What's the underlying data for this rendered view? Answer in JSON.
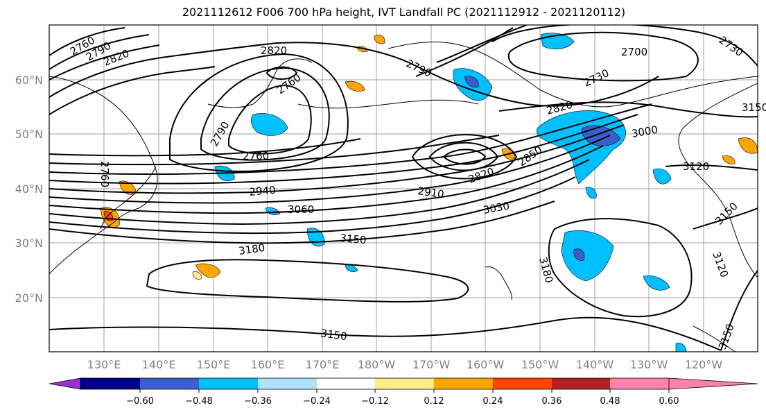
{
  "title": "2021112612 F006 700 hPa height, IVT Landfall PC (2021112912 - 2021120112)",
  "map": {
    "lon_labels": [
      "130°E",
      "140°E",
      "150°E",
      "160°E",
      "170°E",
      "180°W",
      "170°W",
      "160°W",
      "150°W",
      "140°W",
      "130°W",
      "120°W"
    ],
    "lat_labels": [
      "60°N",
      "50°N",
      "40°N",
      "30°N",
      "20°N"
    ],
    "contour_labels": [
      "2760",
      "2790",
      "2820",
      "2820",
      "2760",
      "2790",
      "2760",
      "2700",
      "2730",
      "2730",
      "2790",
      "2820",
      "2850",
      "2820",
      "3000",
      "3120",
      "2910",
      "2940",
      "3060",
      "3030",
      "3150",
      "3180",
      "3150",
      "3180",
      "3150",
      "3120",
      "2760",
      "3150",
      "3150"
    ]
  },
  "colorbar": {
    "ticks": [
      "−0.60",
      "−0.48",
      "−0.36",
      "−0.24",
      "−0.12",
      "0.12",
      "0.24",
      "0.36",
      "0.48",
      "0.60"
    ],
    "colors": [
      "#9932cc",
      "#00008b",
      "#3a5fcd",
      "#00bfff",
      "#b0e2ff",
      "#ffffff",
      "#ffec8b",
      "#ffa500",
      "#ff4500",
      "#b22222",
      "#ff82ab"
    ]
  },
  "colors": {
    "negative_fill": "#00bfff",
    "negative_strong": "#3a5fcd",
    "positive_fill": "#ffa500",
    "positive_light": "#ffec8b",
    "contour": "#000000",
    "grid": "#a0a0a0"
  }
}
